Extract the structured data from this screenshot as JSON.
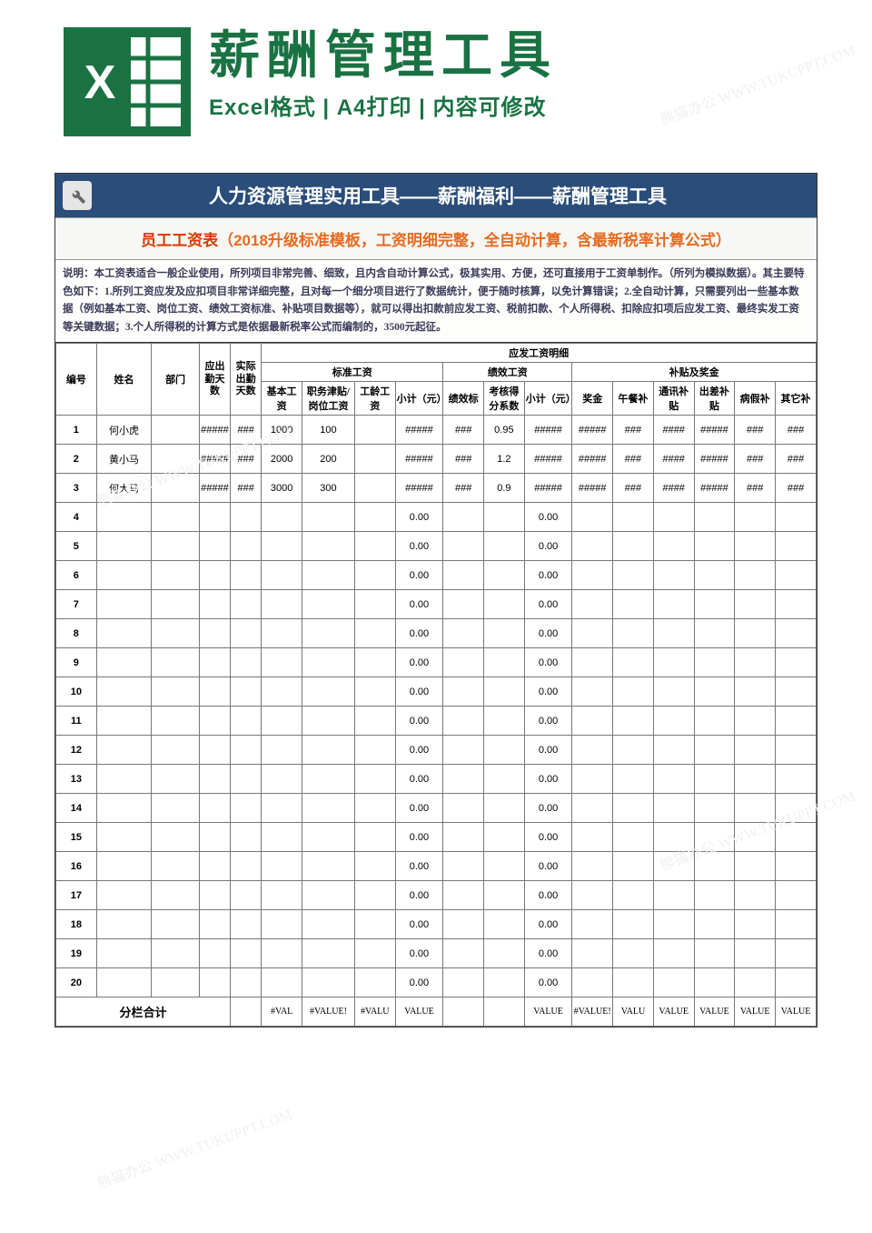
{
  "watermark_text": "熊猫办公 WWW.TUKUPPT.COM",
  "header": {
    "title": "薪酬管理工具",
    "subtitle": "Excel格式 | A4打印 | 内容可修改"
  },
  "banner": "人力资源管理实用工具——薪酬福利——薪酬管理工具",
  "subbanner_red": "员工工资表",
  "subbanner_orange": "（2018升级标准模板，工资明细完整，全自动计算，含最新税率计算公式）",
  "description": "说明：本工资表适合一般企业使用，所列项目非常完善、细致，且内含自动计算公式，极其实用、方便，还可直接用于工资单制作。（所列为模拟数据）。其主要特色如下：1.所列工资应发及应扣项目非常详细完整，且对每一个细分项目进行了数据统计，便于随时核算，以免计算错误；2.全自动计算，只需要列出一些基本数据（例如基本工资、岗位工资、绩效工资标准、补贴项目数据等），就可以得出扣款前应发工资、税前扣款、个人所得税、扣除应扣项后应发工资、最终实发工资等关键数据；3.个人所得税的计算方式是依据最新税率公式而编制的，3500元起征。",
  "table": {
    "super_header": "应发工资明细",
    "group_headers": {
      "g1": "标准工资",
      "g2": "绩效工资",
      "g3": "补贴及奖金"
    },
    "headers": {
      "id": "编号",
      "name": "姓名",
      "dept": "部门",
      "att_due": "应出勤天数",
      "att_act": "实际出勤天数",
      "base": "基本工资",
      "post": "职务津贴/岗位工资",
      "age": "工龄工资",
      "sub1": "小计（元）",
      "perf_std": "绩效标",
      "perf_coef": "考核得分系数",
      "sub2": "小计（元）",
      "bonus": "奖金",
      "lunch": "午餐补",
      "comm": "通讯补贴",
      "trip": "出差补贴",
      "sick": "病假补",
      "other": "其它补"
    },
    "rows": [
      {
        "id": "1",
        "name": "何小虎",
        "dept": "",
        "att1": "#####",
        "att2": "###",
        "base": "1000",
        "post": "100",
        "age": "",
        "sub1": "#####",
        "perf": "###",
        "coef": "0.95",
        "sub2": "#####",
        "bonus": "#####",
        "lunch": "###",
        "comm": "####",
        "trip": "#####",
        "sick": "###",
        "other": "###"
      },
      {
        "id": "2",
        "name": "黄小马",
        "dept": "",
        "att1": "#####",
        "att2": "###",
        "base": "2000",
        "post": "200",
        "age": "",
        "sub1": "#####",
        "perf": "###",
        "coef": "1.2",
        "sub2": "#####",
        "bonus": "#####",
        "lunch": "###",
        "comm": "####",
        "trip": "#####",
        "sick": "###",
        "other": "###"
      },
      {
        "id": "3",
        "name": "何大马",
        "dept": "",
        "att1": "#####",
        "att2": "###",
        "base": "3000",
        "post": "300",
        "age": "",
        "sub1": "#####",
        "perf": "###",
        "coef": "0.9",
        "sub2": "#####",
        "bonus": "#####",
        "lunch": "###",
        "comm": "####",
        "trip": "#####",
        "sick": "###",
        "other": "###"
      },
      {
        "id": "4",
        "sub1": "0.00",
        "sub2": "0.00"
      },
      {
        "id": "5",
        "sub1": "0.00",
        "sub2": "0.00"
      },
      {
        "id": "6",
        "sub1": "0.00",
        "sub2": "0.00"
      },
      {
        "id": "7",
        "sub1": "0.00",
        "sub2": "0.00"
      },
      {
        "id": "8",
        "sub1": "0.00",
        "sub2": "0.00"
      },
      {
        "id": "9",
        "sub1": "0.00",
        "sub2": "0.00"
      },
      {
        "id": "10",
        "sub1": "0.00",
        "sub2": "0.00"
      },
      {
        "id": "11",
        "sub1": "0.00",
        "sub2": "0.00"
      },
      {
        "id": "12",
        "sub1": "0.00",
        "sub2": "0.00"
      },
      {
        "id": "13",
        "sub1": "0.00",
        "sub2": "0.00"
      },
      {
        "id": "14",
        "sub1": "0.00",
        "sub2": "0.00"
      },
      {
        "id": "15",
        "sub1": "0.00",
        "sub2": "0.00"
      },
      {
        "id": "16",
        "sub1": "0.00",
        "sub2": "0.00"
      },
      {
        "id": "17",
        "sub1": "0.00",
        "sub2": "0.00"
      },
      {
        "id": "18",
        "sub1": "0.00",
        "sub2": "0.00"
      },
      {
        "id": "19",
        "sub1": "0.00",
        "sub2": "0.00"
      },
      {
        "id": "20",
        "sub1": "0.00",
        "sub2": "0.00"
      }
    ],
    "total_label": "分栏合计",
    "total_cells": [
      "",
      "#VAL",
      "#VALUE!",
      "#VALU",
      "VALUE",
      "",
      "",
      "VALUE",
      "#VALUE!",
      "VALU",
      "VALUE",
      "VALUE",
      "VALUE",
      "VALUE"
    ]
  },
  "colors": {
    "brand_green": "#1a7243",
    "banner_blue": "#2a4d7a",
    "yellow": "#ffff00",
    "red": "#d83a00",
    "orange": "#e56b1f"
  }
}
